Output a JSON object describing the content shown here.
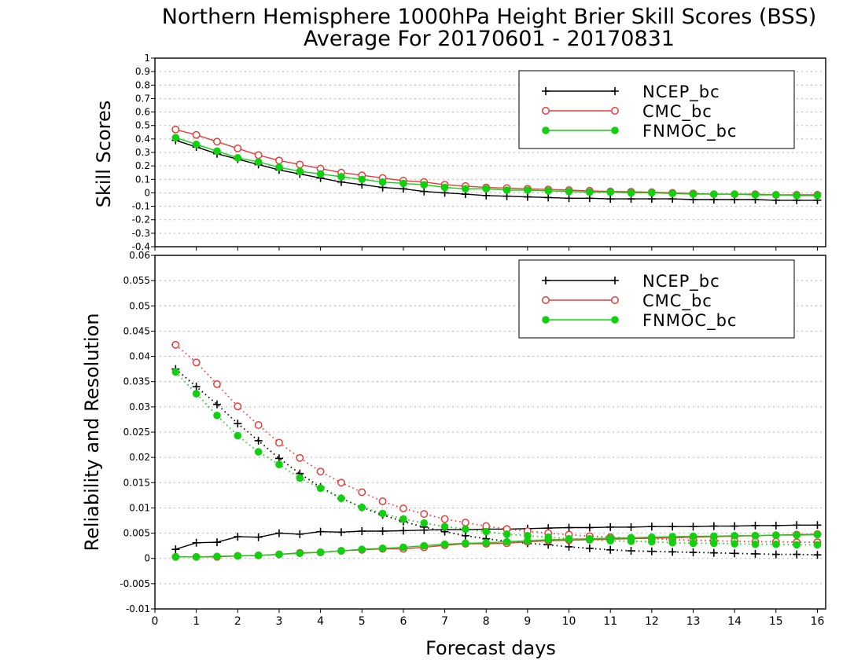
{
  "title_line1": "Northern Hemisphere 1000hPa Height Brier Skill Scores (BSS)",
  "title_line2": "Average For 20170601 - 20170831",
  "xlabel": "Forecast days",
  "colors": {
    "ncep": "#000000",
    "cmc": "#e83a3a",
    "fnmoc": "#10d010"
  },
  "chart_data": [
    {
      "type": "line",
      "ylabel": "Skill Scores",
      "xlim": [
        0,
        16.2
      ],
      "ylim": [
        -0.4,
        1.0
      ],
      "xticks": [
        "0",
        "1",
        "2",
        "3",
        "4",
        "5",
        "6",
        "7",
        "8",
        "9",
        "10",
        "11",
        "12",
        "13",
        "14",
        "15",
        "16"
      ],
      "yticks": [
        "-0.4",
        "-0.3",
        "-0.2",
        "-0.1",
        "0",
        "0.1",
        "0.2",
        "0.3",
        "0.4",
        "0.5",
        "0.6",
        "0.7",
        "0.8",
        "0.9",
        "1"
      ],
      "grid": true,
      "legend": "top-right",
      "x": [
        0.5,
        1,
        1.5,
        2,
        2.5,
        3,
        3.5,
        4,
        4.5,
        5,
        5.5,
        6,
        6.5,
        7,
        7.5,
        8,
        8.5,
        9,
        9.5,
        10,
        10.5,
        11,
        11.5,
        12,
        12.5,
        13,
        13.5,
        14,
        14.5,
        15,
        15.5,
        16
      ],
      "series": [
        {
          "name": "NCEP_bc",
          "style": "solid",
          "marker": "plus",
          "values": [
            0.39,
            0.34,
            0.29,
            0.25,
            0.21,
            0.17,
            0.14,
            0.11,
            0.08,
            0.06,
            0.04,
            0.03,
            0.01,
            0.0,
            -0.01,
            -0.02,
            -0.025,
            -0.03,
            -0.035,
            -0.04,
            -0.04,
            -0.045,
            -0.045,
            -0.045,
            -0.045,
            -0.05,
            -0.05,
            -0.05,
            -0.05,
            -0.055,
            -0.055,
            -0.055
          ]
        },
        {
          "name": "CMC_bc",
          "style": "solid",
          "marker": "open-circle",
          "values": [
            0.47,
            0.43,
            0.38,
            0.33,
            0.28,
            0.24,
            0.21,
            0.18,
            0.15,
            0.13,
            0.11,
            0.09,
            0.08,
            0.06,
            0.05,
            0.04,
            0.035,
            0.03,
            0.025,
            0.02,
            0.015,
            0.01,
            0.008,
            0.005,
            0.0,
            -0.005,
            -0.01,
            -0.01,
            -0.01,
            -0.015,
            -0.015,
            -0.015
          ]
        },
        {
          "name": "FNMOC_bc",
          "style": "solid",
          "marker": "filled-circle",
          "values": [
            0.41,
            0.36,
            0.31,
            0.26,
            0.23,
            0.19,
            0.16,
            0.14,
            0.12,
            0.1,
            0.08,
            0.07,
            0.06,
            0.04,
            0.03,
            0.03,
            0.02,
            0.02,
            0.015,
            0.01,
            0.005,
            0.005,
            0.0,
            0.0,
            -0.005,
            -0.01,
            -0.01,
            -0.01,
            -0.015,
            -0.015,
            -0.02,
            -0.02
          ]
        }
      ]
    },
    {
      "type": "line",
      "ylabel": "Reliability and Resolution",
      "xlim": [
        0,
        16.2
      ],
      "ylim": [
        -0.01,
        0.06
      ],
      "xticks": [
        "0",
        "1",
        "2",
        "3",
        "4",
        "5",
        "6",
        "7",
        "8",
        "9",
        "10",
        "11",
        "12",
        "13",
        "14",
        "15",
        "16"
      ],
      "yticks": [
        "-0.01",
        "-0.005",
        "0",
        "0.005",
        "0.01",
        "0.015",
        "0.02",
        "0.025",
        "0.03",
        "0.035",
        "0.04",
        "0.045",
        "0.05",
        "0.055",
        "0.06"
      ],
      "grid": true,
      "legend": "top-right",
      "x": [
        0.5,
        1,
        1.5,
        2,
        2.5,
        3,
        3.5,
        4,
        4.5,
        5,
        5.5,
        6,
        6.5,
        7,
        7.5,
        8,
        8.5,
        9,
        9.5,
        10,
        10.5,
        11,
        11.5,
        12,
        12.5,
        13,
        13.5,
        14,
        14.5,
        15,
        15.5,
        16
      ],
      "series": [
        {
          "name": "NCEP_bc",
          "component": "reliability",
          "style": "solid",
          "marker": "plus",
          "values": [
            0.0018,
            0.0031,
            0.0032,
            0.0043,
            0.0042,
            0.005,
            0.0048,
            0.0053,
            0.0052,
            0.0054,
            0.0054,
            0.0055,
            0.0056,
            0.0057,
            0.0057,
            0.0058,
            0.0058,
            0.0059,
            0.006,
            0.0061,
            0.0061,
            0.0062,
            0.0062,
            0.0063,
            0.0063,
            0.0063,
            0.0064,
            0.0064,
            0.0065,
            0.0065,
            0.0066,
            0.0066
          ]
        },
        {
          "name": "NCEP_bc",
          "component": "resolution",
          "style": "dotted",
          "marker": "plus",
          "values": [
            0.0375,
            0.034,
            0.0305,
            0.0267,
            0.0233,
            0.0198,
            0.0168,
            0.0141,
            0.0119,
            0.0101,
            0.0086,
            0.0073,
            0.0062,
            0.0053,
            0.0045,
            0.0039,
            0.0034,
            0.003,
            0.0027,
            0.0023,
            0.002,
            0.0017,
            0.0015,
            0.0014,
            0.0013,
            0.0012,
            0.0011,
            0.001,
            0.0009,
            0.0008,
            0.0008,
            0.0007
          ]
        },
        {
          "name": "CMC_bc",
          "component": "reliability",
          "style": "solid",
          "marker": "open-circle",
          "values": [
            0.0003,
            0.0003,
            0.0003,
            0.0005,
            0.0006,
            0.0008,
            0.0011,
            0.0012,
            0.0015,
            0.0017,
            0.0019,
            0.0019,
            0.0022,
            0.0026,
            0.0029,
            0.0029,
            0.003,
            0.0033,
            0.0035,
            0.0036,
            0.0037,
            0.0038,
            0.0039,
            0.004,
            0.0041,
            0.0042,
            0.0043,
            0.0044,
            0.0045,
            0.0046,
            0.0047,
            0.0048
          ]
        },
        {
          "name": "CMC_bc",
          "component": "resolution",
          "style": "dotted",
          "marker": "open-circle",
          "values": [
            0.0423,
            0.0388,
            0.0345,
            0.0301,
            0.0264,
            0.0229,
            0.0199,
            0.0172,
            0.015,
            0.0131,
            0.0113,
            0.0099,
            0.0088,
            0.0078,
            0.0071,
            0.0064,
            0.0058,
            0.0054,
            0.005,
            0.0047,
            0.0044,
            0.0042,
            0.004,
            0.0039,
            0.0037,
            0.0036,
            0.0035,
            0.0034,
            0.0033,
            0.0033,
            0.0032,
            0.0032
          ]
        },
        {
          "name": "FNMOC_bc",
          "component": "reliability",
          "style": "solid",
          "marker": "filled-circle",
          "values": [
            0.0003,
            0.0003,
            0.0004,
            0.0005,
            0.0006,
            0.0008,
            0.001,
            0.0012,
            0.0015,
            0.0018,
            0.002,
            0.0022,
            0.0025,
            0.0028,
            0.003,
            0.0031,
            0.0033,
            0.0035,
            0.0037,
            0.0038,
            0.0039,
            0.004,
            0.0041,
            0.0042,
            0.0043,
            0.0044,
            0.0044,
            0.0045,
            0.0045,
            0.0046,
            0.0046,
            0.0047
          ]
        },
        {
          "name": "FNMOC_bc",
          "component": "resolution",
          "style": "dotted",
          "marker": "filled-circle",
          "values": [
            0.0369,
            0.0326,
            0.0283,
            0.0243,
            0.0211,
            0.0186,
            0.0159,
            0.0139,
            0.0119,
            0.0101,
            0.0089,
            0.0078,
            0.007,
            0.0063,
            0.0058,
            0.0053,
            0.0048,
            0.0045,
            0.0042,
            0.0039,
            0.0037,
            0.0035,
            0.0034,
            0.0033,
            0.0031,
            0.003,
            0.003,
            0.0029,
            0.0028,
            0.0028,
            0.0027,
            0.0027
          ]
        }
      ]
    }
  ]
}
